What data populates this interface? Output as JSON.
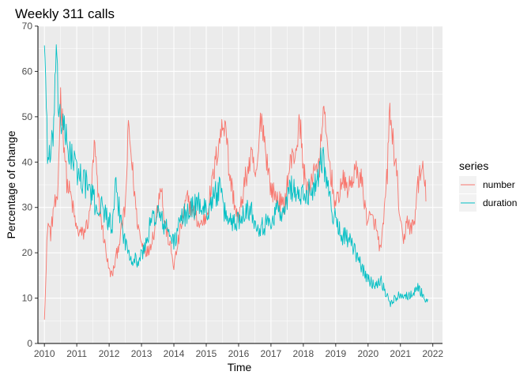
{
  "chart_data": {
    "type": "line",
    "title": "Weekly 311 calls",
    "xlabel": "Time",
    "ylabel": "Percentage of change",
    "xlim": [
      2009.8,
      2022.3
    ],
    "ylim": [
      0,
      70
    ],
    "x_ticks": [
      "2010",
      "2011",
      "2012",
      "2013",
      "2014",
      "2015",
      "2016",
      "2017",
      "2018",
      "2019",
      "2020",
      "2021",
      "2022"
    ],
    "y_ticks": [
      "0",
      "10",
      "20",
      "30",
      "40",
      "50",
      "60",
      "70"
    ],
    "grid": true,
    "panel_background": "#EBEBEB",
    "legend": {
      "title": "series",
      "position": "right"
    },
    "series": [
      {
        "name": "number",
        "color": "#F8766D",
        "anchors": [
          [
            2010.0,
            6
          ],
          [
            2010.05,
            15
          ],
          [
            2010.1,
            27
          ],
          [
            2010.2,
            24
          ],
          [
            2010.3,
            31
          ],
          [
            2010.4,
            30
          ],
          [
            2010.5,
            55
          ],
          [
            2010.6,
            45
          ],
          [
            2010.7,
            35
          ],
          [
            2010.8,
            33
          ],
          [
            2011.0,
            25
          ],
          [
            2011.2,
            24
          ],
          [
            2011.4,
            28
          ],
          [
            2011.55,
            44
          ],
          [
            2011.65,
            33
          ],
          [
            2011.8,
            25
          ],
          [
            2012.0,
            16
          ],
          [
            2012.1,
            15
          ],
          [
            2012.3,
            22
          ],
          [
            2012.5,
            30
          ],
          [
            2012.6,
            48
          ],
          [
            2012.7,
            40
          ],
          [
            2012.85,
            28
          ],
          [
            2013.0,
            22
          ],
          [
            2013.2,
            20
          ],
          [
            2013.4,
            25
          ],
          [
            2013.6,
            36
          ],
          [
            2013.7,
            27
          ],
          [
            2013.9,
            21
          ],
          [
            2014.0,
            17
          ],
          [
            2014.2,
            25
          ],
          [
            2014.4,
            32
          ],
          [
            2014.6,
            29
          ],
          [
            2014.8,
            26
          ],
          [
            2015.0,
            28
          ],
          [
            2015.2,
            36
          ],
          [
            2015.4,
            45
          ],
          [
            2015.6,
            50
          ],
          [
            2015.7,
            38
          ],
          [
            2015.9,
            30
          ],
          [
            2016.0,
            27
          ],
          [
            2016.2,
            36
          ],
          [
            2016.4,
            41
          ],
          [
            2016.55,
            36
          ],
          [
            2016.7,
            51
          ],
          [
            2016.85,
            42
          ],
          [
            2017.0,
            34
          ],
          [
            2017.2,
            32
          ],
          [
            2017.4,
            30
          ],
          [
            2017.6,
            40
          ],
          [
            2017.75,
            42
          ],
          [
            2017.9,
            49
          ],
          [
            2018.0,
            38
          ],
          [
            2018.2,
            33
          ],
          [
            2018.35,
            40
          ],
          [
            2018.5,
            38
          ],
          [
            2018.6,
            52
          ],
          [
            2018.75,
            43
          ],
          [
            2018.9,
            35
          ],
          [
            2019.0,
            30
          ],
          [
            2019.2,
            36
          ],
          [
            2019.4,
            34
          ],
          [
            2019.6,
            38
          ],
          [
            2019.8,
            36
          ],
          [
            2019.95,
            28
          ],
          [
            2020.2,
            27
          ],
          [
            2020.4,
            20
          ],
          [
            2020.6,
            38
          ],
          [
            2020.65,
            51
          ],
          [
            2020.75,
            46
          ],
          [
            2020.9,
            36
          ],
          [
            2021.0,
            26
          ],
          [
            2021.1,
            22
          ],
          [
            2021.2,
            28
          ],
          [
            2021.3,
            25
          ],
          [
            2021.45,
            27
          ],
          [
            2021.5,
            34
          ],
          [
            2021.6,
            37
          ],
          [
            2021.7,
            38
          ],
          [
            2021.8,
            32
          ]
        ]
      },
      {
        "name": "duration",
        "color": "#00BFC4",
        "anchors": [
          [
            2010.0,
            68
          ],
          [
            2010.05,
            55
          ],
          [
            2010.1,
            42
          ],
          [
            2010.2,
            40
          ],
          [
            2010.3,
            50
          ],
          [
            2010.35,
            62
          ],
          [
            2010.45,
            52
          ],
          [
            2010.55,
            48
          ],
          [
            2010.7,
            44
          ],
          [
            2010.9,
            40
          ],
          [
            2011.0,
            38
          ],
          [
            2011.2,
            36
          ],
          [
            2011.4,
            34
          ],
          [
            2011.6,
            30
          ],
          [
            2011.8,
            30
          ],
          [
            2012.0,
            27
          ],
          [
            2012.1,
            25
          ],
          [
            2012.2,
            34
          ],
          [
            2012.3,
            30
          ],
          [
            2012.5,
            22
          ],
          [
            2012.7,
            19
          ],
          [
            2012.9,
            18
          ],
          [
            2013.1,
            21
          ],
          [
            2013.3,
            27
          ],
          [
            2013.5,
            29
          ],
          [
            2013.7,
            26
          ],
          [
            2013.9,
            24
          ],
          [
            2014.0,
            22
          ],
          [
            2014.2,
            27
          ],
          [
            2014.4,
            29
          ],
          [
            2014.6,
            30
          ],
          [
            2014.8,
            31
          ],
          [
            2015.0,
            29
          ],
          [
            2015.2,
            32
          ],
          [
            2015.4,
            34
          ],
          [
            2015.6,
            28
          ],
          [
            2015.8,
            27
          ],
          [
            2016.0,
            27
          ],
          [
            2016.2,
            30
          ],
          [
            2016.4,
            29
          ],
          [
            2016.6,
            26
          ],
          [
            2016.8,
            26
          ],
          [
            2017.0,
            27
          ],
          [
            2017.2,
            30
          ],
          [
            2017.4,
            28
          ],
          [
            2017.6,
            35
          ],
          [
            2017.8,
            33
          ],
          [
            2018.0,
            32
          ],
          [
            2018.2,
            34
          ],
          [
            2018.4,
            35
          ],
          [
            2018.55,
            42
          ],
          [
            2018.7,
            38
          ],
          [
            2018.85,
            30
          ],
          [
            2019.0,
            27
          ],
          [
            2019.2,
            24
          ],
          [
            2019.4,
            23
          ],
          [
            2019.6,
            20
          ],
          [
            2019.8,
            17
          ],
          [
            2020.0,
            14
          ],
          [
            2020.2,
            13
          ],
          [
            2020.4,
            14
          ],
          [
            2020.6,
            10
          ],
          [
            2020.7,
            9
          ],
          [
            2020.85,
            10
          ],
          [
            2021.0,
            11
          ],
          [
            2021.2,
            10.5
          ],
          [
            2021.4,
            11
          ],
          [
            2021.55,
            12.5
          ],
          [
            2021.7,
            10.5
          ],
          [
            2021.85,
            9
          ]
        ]
      }
    ]
  }
}
